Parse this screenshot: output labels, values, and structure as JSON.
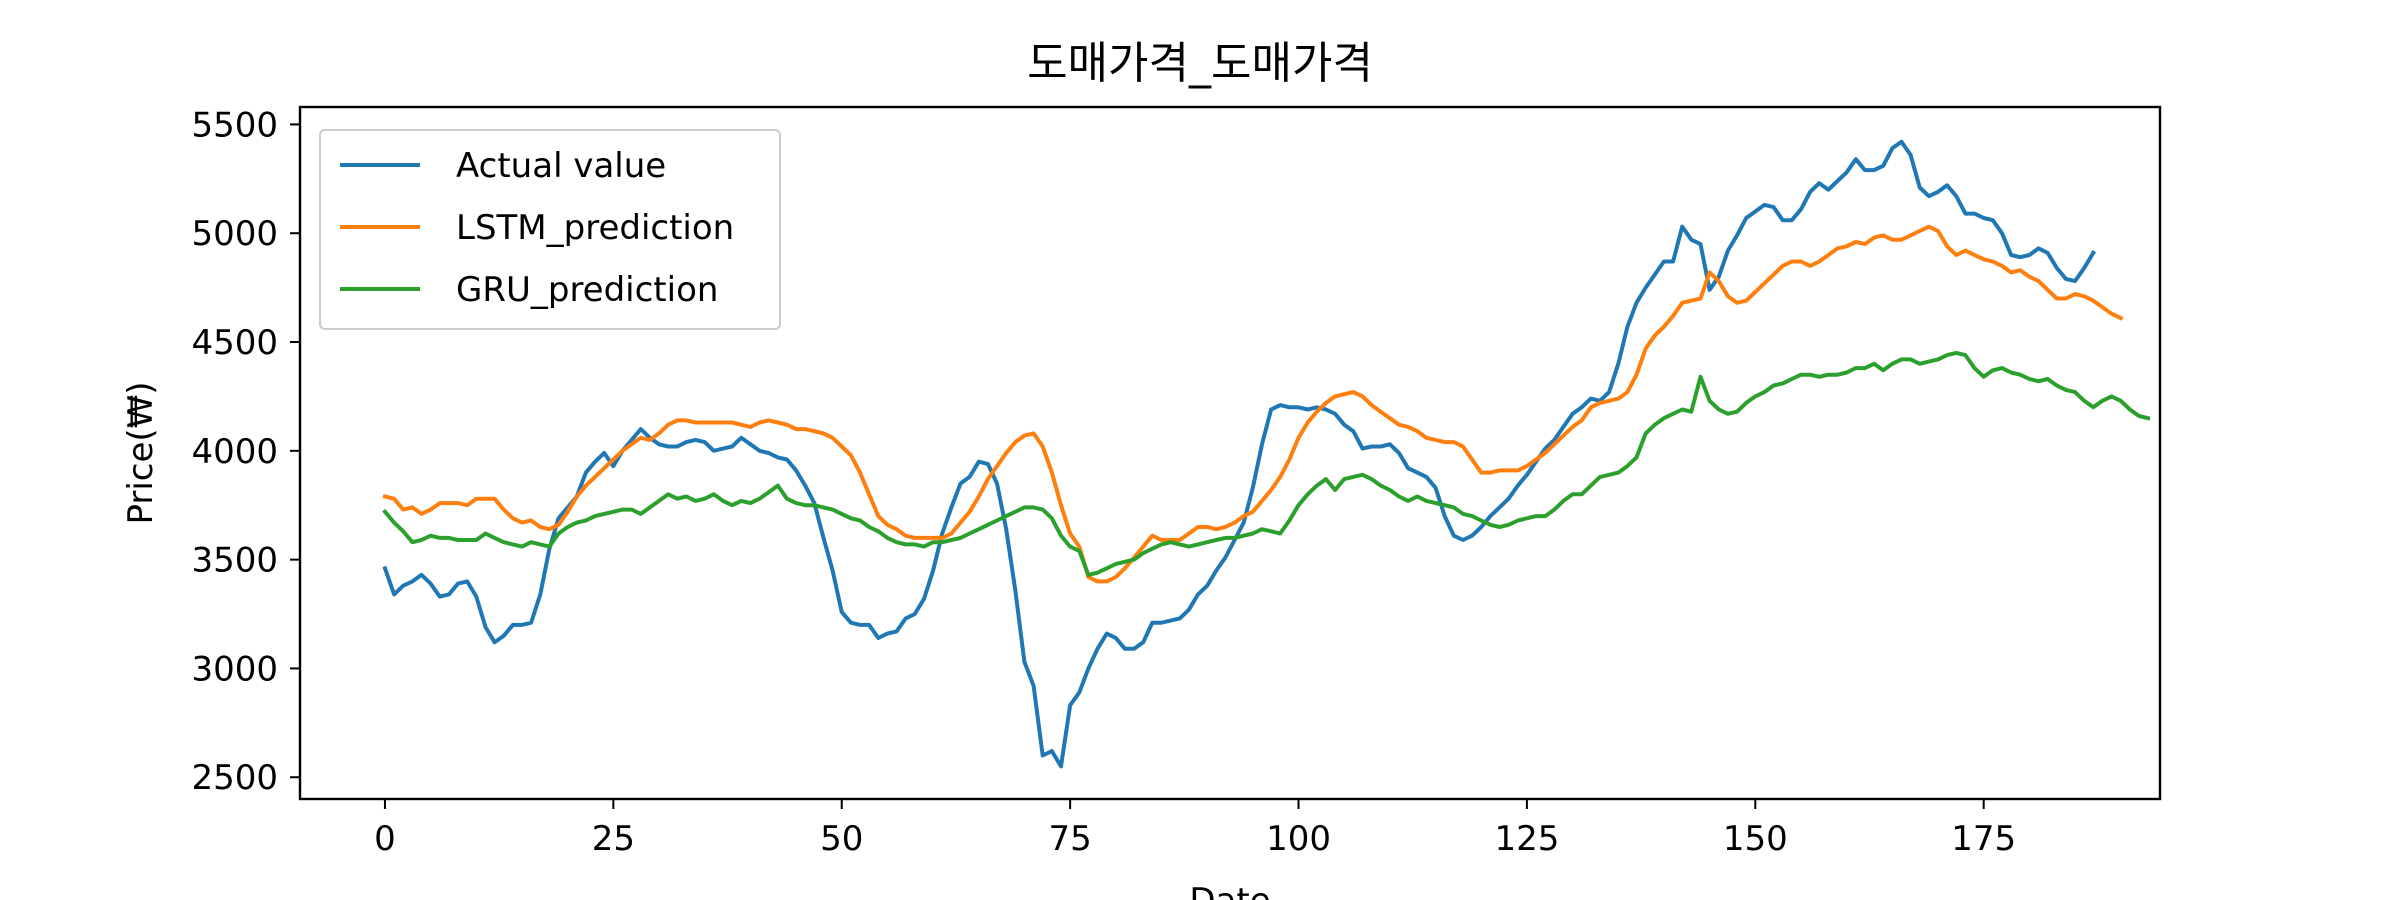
{
  "chart_data": {
    "type": "line",
    "title": "도매가격_도매가격",
    "xlabel": "Date",
    "ylabel": "Price(₩)",
    "xlim": [
      -9.3,
      194.3
    ],
    "ylim": [
      2400,
      5580
    ],
    "xticks": [
      0,
      25,
      50,
      75,
      100,
      125,
      150,
      175
    ],
    "yticks": [
      2500,
      3000,
      3500,
      4000,
      4500,
      5000,
      5500
    ],
    "grid": false,
    "legend_position": "upper-left",
    "series": [
      {
        "name": "Actual value",
        "color": "#1f77b4",
        "values": [
          3460,
          3340,
          3380,
          3400,
          3430,
          3390,
          3330,
          3340,
          3390,
          3400,
          3330,
          3190,
          3120,
          3150,
          3200,
          3200,
          3210,
          3340,
          3550,
          3690,
          3740,
          3790,
          3900,
          3950,
          3990,
          3930,
          4000,
          4050,
          4100,
          4060,
          4030,
          4020,
          4020,
          4040,
          4050,
          4040,
          4000,
          4010,
          4020,
          4060,
          4030,
          4000,
          3990,
          3970,
          3960,
          3910,
          3840,
          3760,
          3600,
          3450,
          3260,
          3210,
          3200,
          3200,
          3140,
          3160,
          3170,
          3230,
          3250,
          3320,
          3450,
          3620,
          3740,
          3850,
          3880,
          3950,
          3940,
          3850,
          3640,
          3360,
          3030,
          2920,
          2600,
          2620,
          2550,
          2830,
          2890,
          3000,
          3090,
          3160,
          3140,
          3090,
          3090,
          3120,
          3210,
          3210,
          3220,
          3230,
          3270,
          3340,
          3380,
          3450,
          3510,
          3590,
          3670,
          3830,
          4030,
          4190,
          4210,
          4200,
          4200,
          4190,
          4200,
          4190,
          4170,
          4120,
          4090,
          4010,
          4020,
          4020,
          4030,
          3990,
          3920,
          3900,
          3880,
          3830,
          3700,
          3610,
          3590,
          3610,
          3650,
          3700,
          3740,
          3780,
          3840,
          3890,
          3950,
          4010,
          4050,
          4110,
          4170,
          4200,
          4240,
          4230,
          4270,
          4400,
          4570,
          4680,
          4750,
          4810,
          4870,
          4870,
          5030,
          4970,
          4950,
          4740,
          4800,
          4920,
          4990,
          5070,
          5100,
          5130,
          5120,
          5060,
          5060,
          5110,
          5190,
          5230,
          5200,
          5240,
          5280,
          5340,
          5290,
          5290,
          5310,
          5390,
          5420,
          5360,
          5210,
          5170,
          5190,
          5220,
          5170,
          5090,
          5090,
          5070,
          5060,
          5000,
          4900,
          4890,
          4900,
          4930,
          4910,
          4840,
          4790,
          4780,
          4840,
          4910
        ]
      },
      {
        "name": "LSTM_prediction",
        "color": "#ff7f0e",
        "values": [
          3790,
          3780,
          3730,
          3740,
          3710,
          3730,
          3760,
          3760,
          3760,
          3750,
          3780,
          3780,
          3780,
          3730,
          3690,
          3670,
          3680,
          3650,
          3640,
          3660,
          3720,
          3790,
          3840,
          3880,
          3920,
          3960,
          4000,
          4030,
          4060,
          4050,
          4080,
          4120,
          4140,
          4140,
          4130,
          4130,
          4130,
          4130,
          4130,
          4120,
          4110,
          4130,
          4140,
          4130,
          4120,
          4100,
          4100,
          4090,
          4080,
          4060,
          4020,
          3980,
          3900,
          3800,
          3700,
          3660,
          3640,
          3610,
          3600,
          3600,
          3600,
          3600,
          3620,
          3670,
          3720,
          3790,
          3870,
          3930,
          3990,
          4040,
          4070,
          4080,
          4020,
          3900,
          3750,
          3620,
          3560,
          3420,
          3400,
          3400,
          3420,
          3460,
          3510,
          3560,
          3610,
          3590,
          3590,
          3590,
          3620,
          3650,
          3650,
          3640,
          3650,
          3670,
          3700,
          3720,
          3770,
          3820,
          3880,
          3960,
          4060,
          4130,
          4180,
          4220,
          4250,
          4260,
          4270,
          4250,
          4210,
          4180,
          4150,
          4120,
          4110,
          4090,
          4060,
          4050,
          4040,
          4040,
          4020,
          3960,
          3900,
          3900,
          3910,
          3910,
          3910,
          3930,
          3960,
          3990,
          4030,
          4070,
          4110,
          4140,
          4200,
          4220,
          4230,
          4240,
          4270,
          4350,
          4470,
          4530,
          4570,
          4620,
          4680,
          4690,
          4700,
          4820,
          4780,
          4710,
          4680,
          4690,
          4730,
          4770,
          4810,
          4850,
          4870,
          4870,
          4850,
          4870,
          4900,
          4930,
          4940,
          4960,
          4950,
          4980,
          4990,
          4970,
          4970,
          4990,
          5010,
          5030,
          5010,
          4940,
          4900,
          4920,
          4900,
          4880,
          4870,
          4850,
          4820,
          4830,
          4800,
          4780,
          4740,
          4700,
          4700,
          4720,
          4710,
          4690,
          4660,
          4630,
          4610
        ]
      },
      {
        "name": "GRU_prediction",
        "color": "#2ca02c",
        "values": [
          3720,
          3670,
          3630,
          3580,
          3590,
          3610,
          3600,
          3600,
          3590,
          3590,
          3590,
          3620,
          3600,
          3580,
          3570,
          3560,
          3580,
          3570,
          3560,
          3620,
          3650,
          3670,
          3680,
          3700,
          3710,
          3720,
          3730,
          3730,
          3710,
          3740,
          3770,
          3800,
          3780,
          3790,
          3770,
          3780,
          3800,
          3770,
          3750,
          3770,
          3760,
          3780,
          3810,
          3840,
          3780,
          3760,
          3750,
          3750,
          3740,
          3730,
          3710,
          3690,
          3680,
          3650,
          3630,
          3600,
          3580,
          3570,
          3570,
          3560,
          3580,
          3580,
          3590,
          3600,
          3620,
          3640,
          3660,
          3680,
          3700,
          3720,
          3740,
          3740,
          3730,
          3690,
          3610,
          3560,
          3540,
          3430,
          3440,
          3460,
          3480,
          3490,
          3500,
          3530,
          3550,
          3570,
          3580,
          3570,
          3560,
          3570,
          3580,
          3590,
          3600,
          3600,
          3610,
          3620,
          3640,
          3630,
          3620,
          3680,
          3750,
          3800,
          3840,
          3870,
          3820,
          3870,
          3880,
          3890,
          3870,
          3840,
          3820,
          3790,
          3770,
          3790,
          3770,
          3760,
          3750,
          3740,
          3710,
          3700,
          3680,
          3660,
          3650,
          3660,
          3680,
          3690,
          3700,
          3700,
          3730,
          3770,
          3800,
          3800,
          3840,
          3880,
          3890,
          3900,
          3930,
          3970,
          4080,
          4120,
          4150,
          4170,
          4190,
          4180,
          4340,
          4230,
          4190,
          4170,
          4180,
          4220,
          4250,
          4270,
          4300,
          4310,
          4330,
          4350,
          4350,
          4340,
          4350,
          4350,
          4360,
          4380,
          4380,
          4400,
          4370,
          4400,
          4420,
          4420,
          4400,
          4410,
          4420,
          4440,
          4450,
          4440,
          4380,
          4340,
          4370,
          4380,
          4360,
          4350,
          4330,
          4320,
          4330,
          4300,
          4280,
          4270,
          4230,
          4200,
          4230,
          4250,
          4230,
          4190,
          4160,
          4150
        ]
      }
    ]
  }
}
